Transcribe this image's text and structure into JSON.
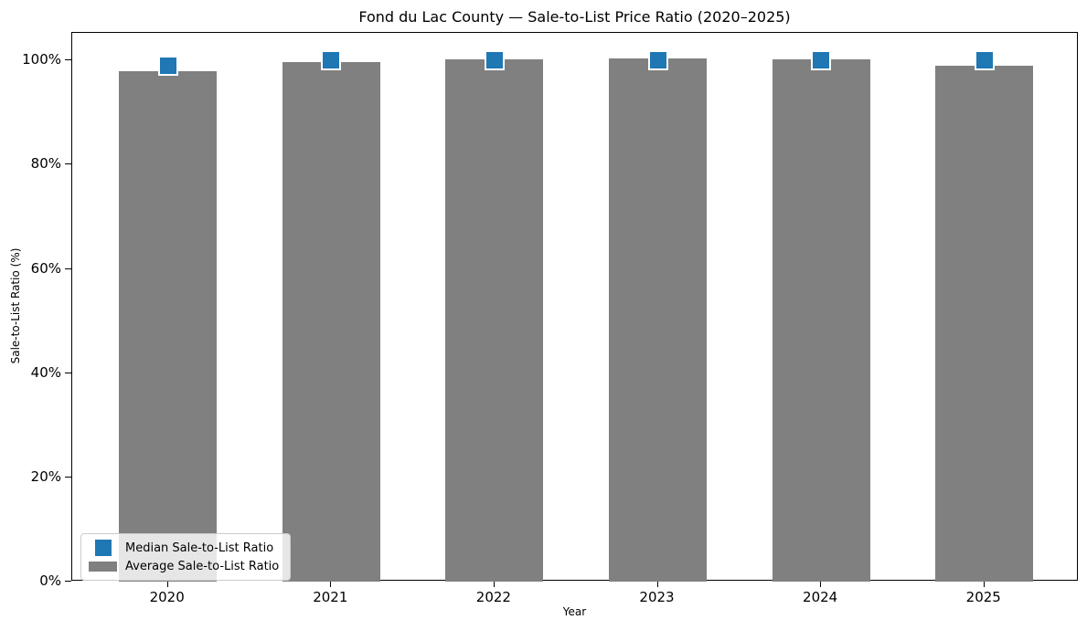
{
  "figure": {
    "background": "#ffffff",
    "axis_color": "#000000",
    "legend_border_color": "#cccccc"
  },
  "chart_data": {
    "type": "bar",
    "title": "Fond du Lac County — Sale-to-List Price Ratio (2020–2025)",
    "xlabel": "Year",
    "ylabel": "Sale-to-List Ratio (%)",
    "categories": [
      "2020",
      "2021",
      "2022",
      "2023",
      "2024",
      "2025"
    ],
    "series": [
      {
        "name": "Median Sale-to-List Ratio",
        "render": "square-marker",
        "color": "#1f77b4",
        "marker_edge_color": "#ffffff",
        "values": [
          99.0,
          100.0,
          100.0,
          100.0,
          100.0,
          100.0
        ]
      },
      {
        "name": "Average Sale-to-List Ratio",
        "render": "bar",
        "color": "#808080",
        "values": [
          98.0,
          99.7,
          100.2,
          100.4,
          100.3,
          99.0
        ]
      }
    ],
    "ylim": [
      0,
      105.3
    ],
    "yticks": {
      "values": [
        0,
        20,
        40,
        60,
        80,
        100
      ],
      "labels": [
        "0%",
        "20%",
        "40%",
        "60%",
        "80%",
        "100%"
      ]
    },
    "bar_width_fraction": 0.6,
    "grid": false,
    "legend": {
      "position": "lower left"
    }
  }
}
